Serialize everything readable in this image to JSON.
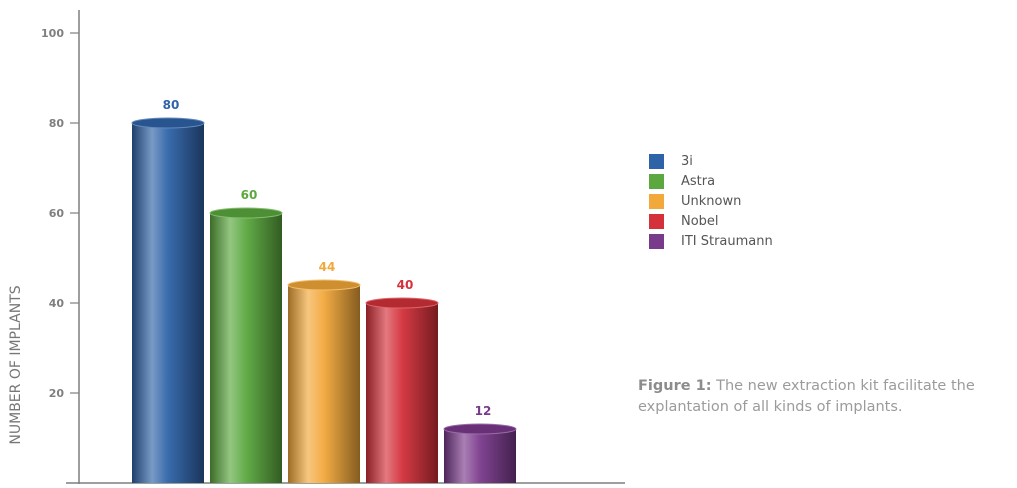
{
  "chart_data": {
    "type": "bar",
    "categories": [
      "3i",
      "Astra",
      "Unknown",
      "Nobel",
      "ITI Straumann"
    ],
    "values": [
      80,
      60,
      44,
      40,
      12
    ],
    "series": [
      {
        "name": "3i",
        "value": 80,
        "color": "#2f63a8"
      },
      {
        "name": "Astra",
        "value": 60,
        "color": "#5aa83e"
      },
      {
        "name": "Unknown",
        "value": 44,
        "color": "#f2a83a"
      },
      {
        "name": "Nobel",
        "value": 40,
        "color": "#d4313a"
      },
      {
        "name": "ITI Straumann",
        "value": 12,
        "color": "#7a3a8c"
      }
    ],
    "data_labels": [
      "80",
      "60",
      "44",
      "40",
      "12"
    ],
    "ylabel": "NUMBER OF IMPLANTS",
    "xlabel": "",
    "ylim": [
      0,
      100
    ],
    "yticks": [
      "20",
      "40",
      "60",
      "80",
      "100"
    ],
    "legend_position": "right",
    "grid": false
  },
  "caption": {
    "bold": "Figure 1:",
    "text": " The new extraction kit facilitate the explantation of all kinds of implants."
  }
}
